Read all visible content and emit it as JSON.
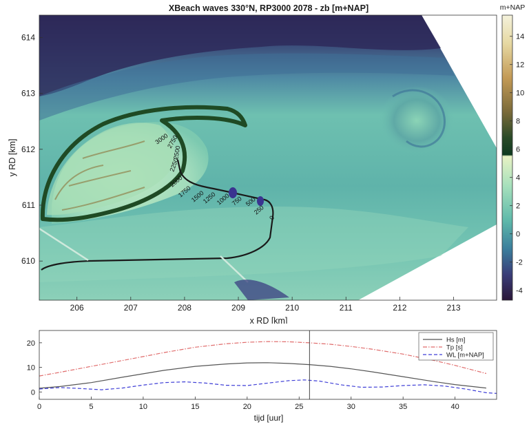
{
  "chart_data": [
    {
      "type": "heatmap",
      "title": "XBeach waves 330°N, RP3000 2078 - zb [m+NAP]",
      "xlabel": "x RD [km]",
      "ylabel": "y RD [km]",
      "xlim": [
        205.3,
        213.8
      ],
      "ylim": [
        609.3,
        614.4
      ],
      "xticks": [
        "206",
        "207",
        "208",
        "209",
        "210",
        "211",
        "212",
        "213"
      ],
      "yticks": [
        "610",
        "611",
        "612",
        "613",
        "614"
      ],
      "colorbar": {
        "label": "m+NAP",
        "range": [
          -4.7,
          15.5
        ],
        "ticks": [
          "14",
          "12",
          "10",
          "8",
          "6",
          "4",
          "2",
          "0",
          "-2",
          "-4"
        ]
      },
      "contour_labels": [
        "2000",
        "1750",
        "1500",
        "1250",
        "1000",
        "750",
        "500",
        "250",
        "0",
        "2250",
        "2500",
        "2750",
        "3000"
      ],
      "colors": {
        "deep": "#2a1f4a",
        "mid": "#4a8fa8",
        "shallow": "#8ed6b8",
        "flat": "#c8ecc8",
        "land_high": "#c6a860",
        "dune": "#1f4a24"
      }
    },
    {
      "type": "line",
      "xlabel": "tijd [uur]",
      "xlim": [
        0,
        44
      ],
      "ylim": [
        -3,
        25
      ],
      "xticks": [
        0,
        5,
        10,
        15,
        20,
        25,
        30,
        35,
        40
      ],
      "yticks": [
        0,
        10,
        20
      ],
      "current_time": 26,
      "legend_position": "top-right",
      "series": [
        {
          "name": "Hs [m]",
          "color": "#555555",
          "style": "solid",
          "x": [
            0,
            2,
            5,
            8,
            10,
            12,
            15,
            18,
            20,
            22,
            24,
            26,
            28,
            30,
            32,
            35,
            38,
            40,
            43
          ],
          "y": [
            1.5,
            2.2,
            3.8,
            6.0,
            7.4,
            8.8,
            10.4,
            11.4,
            11.8,
            11.9,
            11.6,
            11.1,
            10.4,
            9.4,
            8.2,
            6.2,
            4.2,
            3.0,
            1.6
          ]
        },
        {
          "name": "Tp [s]",
          "color": "#e06b6b",
          "style": "dashdot",
          "x": [
            0,
            2,
            5,
            8,
            10,
            12,
            15,
            18,
            20,
            22,
            24,
            26,
            28,
            30,
            32,
            35,
            38,
            40,
            43
          ],
          "y": [
            6.5,
            8.0,
            10.4,
            12.8,
            14.4,
            16.0,
            18.2,
            19.6,
            20.2,
            20.5,
            20.4,
            20.0,
            19.4,
            18.5,
            17.4,
            15.4,
            12.8,
            10.8,
            7.5
          ]
        },
        {
          "name": "WL [m+NAP]",
          "color": "#3d3dd6",
          "style": "dashed",
          "x": [
            0,
            2,
            4,
            6,
            8,
            10,
            12,
            14,
            16,
            18,
            20,
            22,
            24,
            25.5,
            27,
            29,
            31,
            33,
            35,
            37,
            39,
            41,
            43,
            44
          ],
          "y": [
            1.2,
            1.8,
            1.4,
            0.9,
            1.6,
            2.8,
            3.8,
            4.1,
            3.6,
            2.7,
            2.6,
            3.6,
            4.6,
            4.9,
            4.4,
            2.9,
            1.9,
            2.0,
            2.6,
            2.9,
            2.4,
            1.2,
            -0.3,
            -0.6
          ]
        }
      ]
    }
  ]
}
